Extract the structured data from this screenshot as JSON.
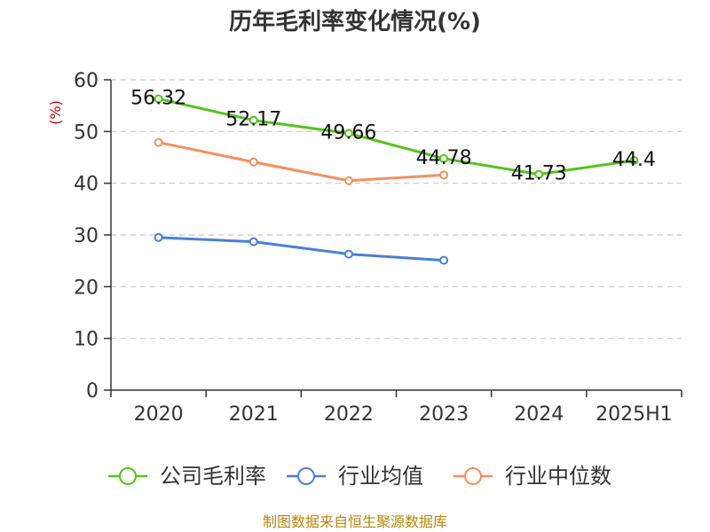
{
  "chart_data": {
    "type": "line",
    "title": "历年毛利率变化情况(%)",
    "ylabel": "(%)",
    "categories": [
      "2020",
      "2021",
      "2022",
      "2023",
      "2024",
      "2025H1"
    ],
    "ylim": [
      0,
      60
    ],
    "yticks": [
      0,
      10,
      20,
      30,
      40,
      50,
      60
    ],
    "grid": true,
    "legend_position": "bottom",
    "series": [
      {
        "name": "公司毛利率",
        "color": "#52c41a",
        "values": [
          56.32,
          52.17,
          49.66,
          44.78,
          41.73,
          44.4
        ],
        "labels": [
          "56.32",
          "52.17",
          "49.66",
          "44.78",
          "41.73",
          "44.4"
        ]
      },
      {
        "name": "行业均值",
        "color": "#4a7fd8",
        "values": [
          29.5,
          28.7,
          26.3,
          25.1,
          null,
          null
        ]
      },
      {
        "name": "行业中位数",
        "color": "#f5905b",
        "values": [
          47.9,
          44.1,
          40.5,
          41.6,
          null,
          null
        ]
      }
    ]
  },
  "footer": {
    "source": "制图数据来自恒生聚源数据库"
  }
}
